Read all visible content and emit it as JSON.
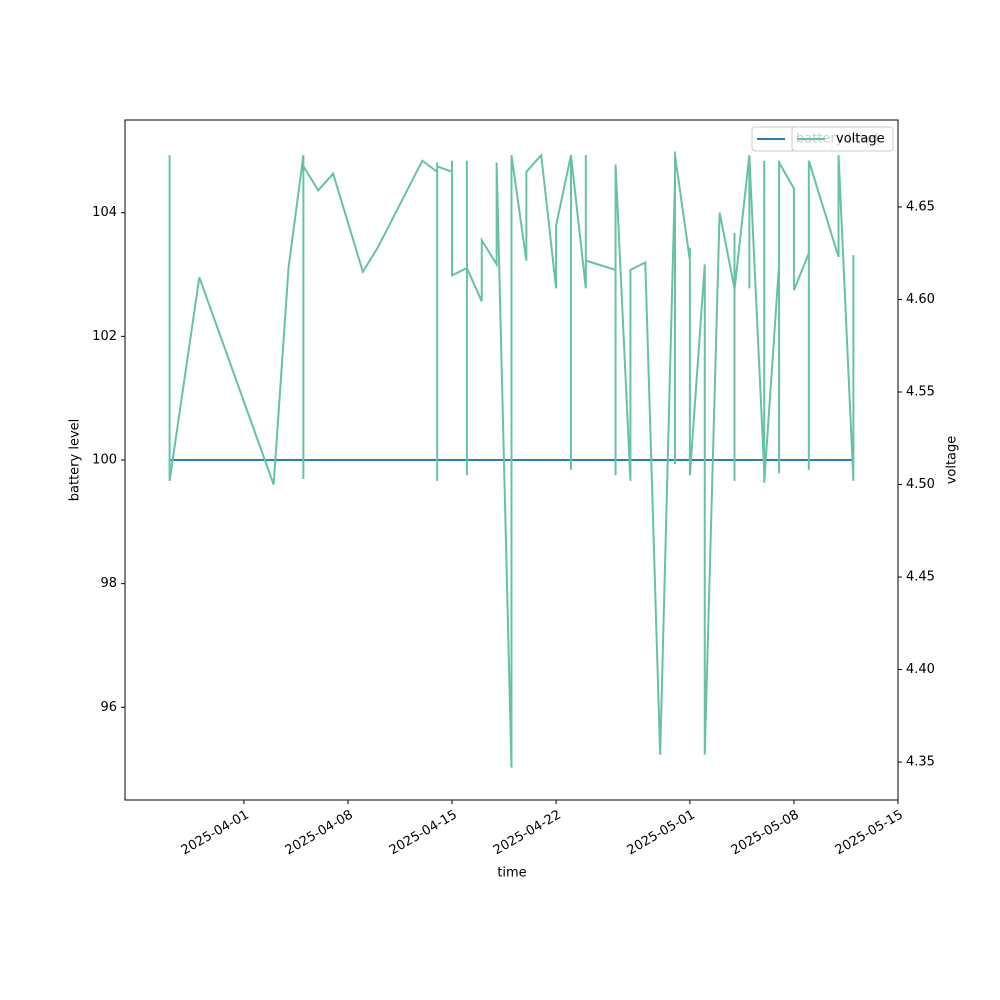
{
  "chart_data": {
    "type": "line",
    "x_label": "time",
    "y_label": "battery level",
    "y2_label": "voltage",
    "xlim": [
      "2025-03-24",
      "2025-05-15"
    ],
    "xticks": [
      "2025-04-01",
      "2025-04-08",
      "2025-04-15",
      "2025-04-22",
      "2025-05-01",
      "2025-05-08",
      "2025-05-15"
    ],
    "ylim": [
      94.5,
      105.5
    ],
    "yticks": [
      96,
      98,
      100,
      102,
      104
    ],
    "y2lim": [
      4.3295,
      4.697
    ],
    "y2ticks": [
      4.35,
      {
        "value": 4.4,
        "label": "4.40"
      },
      4.45,
      {
        "value": 4.5,
        "label": "4.50"
      },
      4.55,
      {
        "value": 4.6,
        "label": "4.60"
      },
      4.65
    ],
    "legend": "upper right",
    "series": [
      {
        "name": "battery level",
        "color": "#2a7fae",
        "axis": "y",
        "x": [
          "2025-03-27",
          "2025-05-12"
        ],
        "values": [
          100,
          100
        ]
      },
      {
        "name": "voltage",
        "color": "#66c2a5",
        "axis": "y2",
        "x": [
          "2025-03-27",
          "2025-03-27",
          "2025-03-29",
          "2025-04-03",
          "2025-04-04",
          "2025-04-05",
          "2025-04-05",
          "2025-04-05",
          "2025-04-06",
          "2025-04-07",
          "2025-04-09",
          "2025-04-10",
          "2025-04-13",
          "2025-04-14",
          "2025-04-14",
          "2025-04-14",
          "2025-04-14",
          "2025-04-14",
          "2025-04-15",
          "2025-04-15",
          "2025-04-15",
          "2025-04-15",
          "2025-04-16",
          "2025-04-16",
          "2025-04-16",
          "2025-04-16",
          "2025-04-17",
          "2025-04-17",
          "2025-04-18",
          "2025-04-18",
          "2025-04-19",
          "2025-04-19",
          "2025-04-19",
          "2025-04-20",
          "2025-04-20",
          "2025-04-21",
          "2025-04-22",
          "2025-04-22",
          "2025-04-23",
          "2025-04-23",
          "2025-04-23",
          "2025-04-24",
          "2025-04-24",
          "2025-04-24",
          "2025-04-26",
          "2025-04-26",
          "2025-04-26",
          "2025-04-27",
          "2025-04-27",
          "2025-04-28",
          "2025-04-29",
          "2025-04-30",
          "2025-04-30",
          "2025-04-30",
          "2025-04-30",
          "2025-04-30",
          "2025-04-30",
          "2025-04-30",
          "2025-04-30",
          "2025-05-01",
          "2025-05-01",
          "2025-05-01",
          "2025-05-02",
          "2025-05-02",
          "2025-05-03",
          "2025-05-04",
          "2025-05-04",
          "2025-05-04",
          "2025-05-04",
          "2025-05-04",
          "2025-05-05",
          "2025-05-05",
          "2025-05-05",
          "2025-05-05",
          "2025-05-05",
          "2025-05-06",
          "2025-05-06",
          "2025-05-06",
          "2025-05-07",
          "2025-05-07",
          "2025-05-07",
          "2025-05-07",
          "2025-05-07",
          "2025-05-07",
          "2025-05-08",
          "2025-05-08",
          "2025-05-09",
          "2025-05-09",
          "2025-05-09",
          "2025-05-11",
          "2025-05-11",
          "2025-05-11",
          "2025-05-11",
          "2025-05-12",
          "2025-05-12"
        ],
        "values": [
          4.678,
          4.502,
          4.612,
          4.5,
          4.617,
          4.678,
          4.503,
          4.672,
          4.659,
          4.668,
          4.615,
          4.628,
          4.675,
          4.669,
          4.674,
          4.673,
          4.502,
          4.672,
          4.669,
          4.675,
          4.617,
          4.613,
          4.617,
          4.675,
          4.505,
          4.617,
          4.599,
          4.632,
          4.619,
          4.674,
          4.347,
          4.631,
          4.678,
          4.621,
          4.669,
          4.678,
          4.606,
          4.64,
          4.678,
          4.508,
          4.678,
          4.606,
          4.678,
          4.621,
          4.616,
          4.505,
          4.673,
          4.502,
          4.616,
          4.62,
          4.354,
          4.666,
          4.675,
          4.626,
          4.68,
          4.619,
          4.662,
          4.511,
          4.678,
          4.621,
          4.628,
          4.505,
          4.619,
          4.354,
          4.647,
          4.606,
          4.625,
          4.502,
          4.636,
          4.605,
          4.678,
          4.644,
          4.613,
          4.606,
          4.678,
          4.507,
          4.675,
          4.501,
          4.619,
          4.602,
          4.638,
          4.506,
          4.675,
          4.674,
          4.66,
          4.605,
          4.625,
          4.508,
          4.675,
          4.623,
          4.665,
          4.628,
          4.678,
          4.502,
          4.624
        ]
      }
    ]
  }
}
